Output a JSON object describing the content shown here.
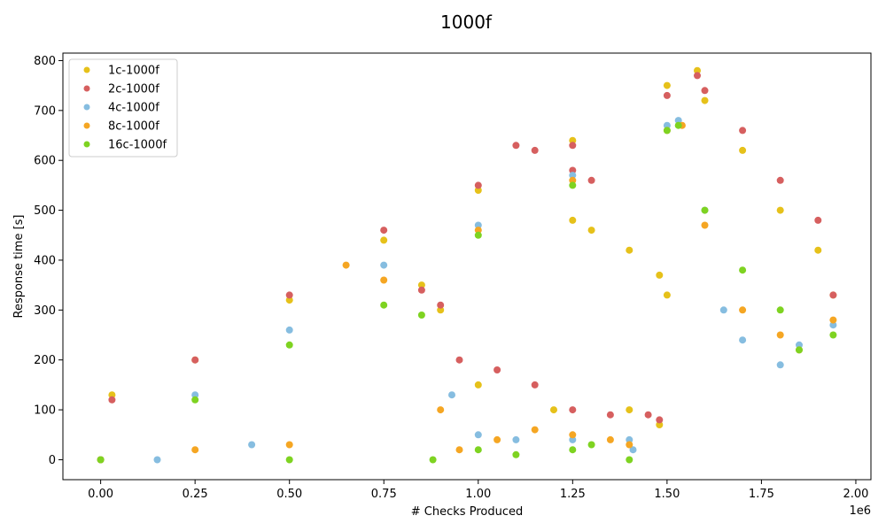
{
  "chart_data": {
    "type": "scatter",
    "title": "1000f",
    "xlabel": "# Checks Produced",
    "ylabel": "Response time [s]",
    "x_offset_text": "1e6",
    "xlim": [
      -100000,
      2040000
    ],
    "ylim": [
      -40,
      815
    ],
    "xticks": [
      0,
      250000,
      500000,
      750000,
      1000000,
      1250000,
      1500000,
      1750000,
      2000000
    ],
    "xtick_labels": [
      "0.00",
      "0.25",
      "0.50",
      "0.75",
      "1.00",
      "1.25",
      "1.50",
      "1.75",
      "2.00"
    ],
    "yticks": [
      0,
      100,
      200,
      300,
      400,
      500,
      600,
      700,
      800
    ],
    "ytick_labels": [
      "0",
      "100",
      "200",
      "300",
      "400",
      "500",
      "600",
      "700",
      "800"
    ],
    "grid": false,
    "legend_position": "top-left",
    "series": [
      {
        "name": "1c-1000f",
        "color": "#e6c11a",
        "points": [
          [
            0,
            0
          ],
          [
            30000,
            130
          ],
          [
            250000,
            200
          ],
          [
            500000,
            320
          ],
          [
            750000,
            440
          ],
          [
            1000000,
            540
          ],
          [
            1250000,
            640
          ],
          [
            1500000,
            750
          ],
          [
            1580000,
            780
          ],
          [
            1600000,
            720
          ],
          [
            1700000,
            620
          ],
          [
            1800000,
            500
          ],
          [
            1900000,
            420
          ],
          [
            1940000,
            330
          ],
          [
            1250000,
            480
          ],
          [
            1300000,
            460
          ],
          [
            1400000,
            420
          ],
          [
            1480000,
            370
          ],
          [
            1500000,
            330
          ],
          [
            1000000,
            150
          ],
          [
            1200000,
            100
          ],
          [
            1400000,
            100
          ],
          [
            1480000,
            70
          ],
          [
            850000,
            350
          ],
          [
            900000,
            300
          ]
        ]
      },
      {
        "name": "2c-1000f",
        "color": "#d65f5f",
        "points": [
          [
            0,
            0
          ],
          [
            30000,
            120
          ],
          [
            250000,
            200
          ],
          [
            500000,
            330
          ],
          [
            750000,
            460
          ],
          [
            1000000,
            550
          ],
          [
            1250000,
            630
          ],
          [
            1500000,
            730
          ],
          [
            1580000,
            770
          ],
          [
            1600000,
            740
          ],
          [
            1700000,
            660
          ],
          [
            1800000,
            560
          ],
          [
            1900000,
            480
          ],
          [
            1940000,
            330
          ],
          [
            1100000,
            630
          ],
          [
            1150000,
            620
          ],
          [
            1250000,
            580
          ],
          [
            1300000,
            560
          ],
          [
            850000,
            340
          ],
          [
            900000,
            310
          ],
          [
            950000,
            200
          ],
          [
            1050000,
            180
          ],
          [
            1150000,
            150
          ],
          [
            1250000,
            100
          ],
          [
            1350000,
            90
          ],
          [
            1450000,
            90
          ],
          [
            1480000,
            80
          ]
        ]
      },
      {
        "name": "4c-1000f",
        "color": "#86bde0",
        "points": [
          [
            0,
            0
          ],
          [
            250000,
            130
          ],
          [
            500000,
            260
          ],
          [
            750000,
            390
          ],
          [
            1000000,
            470
          ],
          [
            1250000,
            570
          ],
          [
            1500000,
            670
          ],
          [
            1530000,
            680
          ],
          [
            1600000,
            500
          ],
          [
            1650000,
            300
          ],
          [
            1700000,
            240
          ],
          [
            1800000,
            190
          ],
          [
            1850000,
            230
          ],
          [
            1940000,
            270
          ],
          [
            930000,
            130
          ],
          [
            1000000,
            50
          ],
          [
            1100000,
            40
          ],
          [
            1250000,
            40
          ],
          [
            1400000,
            40
          ],
          [
            1410000,
            20
          ],
          [
            150000,
            0
          ],
          [
            400000,
            30
          ]
        ]
      },
      {
        "name": "8c-1000f",
        "color": "#f5a623",
        "points": [
          [
            0,
            0
          ],
          [
            250000,
            20
          ],
          [
            500000,
            30
          ],
          [
            750000,
            360
          ],
          [
            1000000,
            460
          ],
          [
            1250000,
            560
          ],
          [
            1500000,
            660
          ],
          [
            1540000,
            670
          ],
          [
            1600000,
            470
          ],
          [
            1700000,
            300
          ],
          [
            1800000,
            250
          ],
          [
            1850000,
            220
          ],
          [
            1940000,
            280
          ],
          [
            900000,
            100
          ],
          [
            950000,
            20
          ],
          [
            1050000,
            40
          ],
          [
            1150000,
            60
          ],
          [
            1250000,
            50
          ],
          [
            1350000,
            40
          ],
          [
            1400000,
            30
          ],
          [
            650000,
            390
          ]
        ]
      },
      {
        "name": "16c-1000f",
        "color": "#7ed321",
        "points": [
          [
            0,
            0
          ],
          [
            250000,
            120
          ],
          [
            500000,
            230
          ],
          [
            750000,
            310
          ],
          [
            850000,
            290
          ],
          [
            880000,
            0
          ],
          [
            1000000,
            450
          ],
          [
            1250000,
            550
          ],
          [
            1500000,
            660
          ],
          [
            1530000,
            670
          ],
          [
            1600000,
            500
          ],
          [
            1700000,
            380
          ],
          [
            1800000,
            300
          ],
          [
            1850000,
            220
          ],
          [
            1940000,
            250
          ],
          [
            1000000,
            20
          ],
          [
            1100000,
            10
          ],
          [
            1250000,
            20
          ],
          [
            1300000,
            30
          ],
          [
            1400000,
            0
          ],
          [
            500000,
            0
          ]
        ]
      }
    ]
  }
}
